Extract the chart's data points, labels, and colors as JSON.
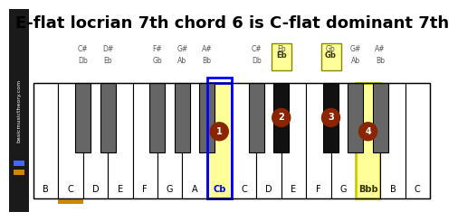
{
  "title": "E-flat locrian 7th chord 6 is C-flat dominant 7th",
  "title_fontsize": 13,
  "bg_color": "#ffffff",
  "sidebar_color": "#1a1a1a",
  "sidebar_text": "basicmusictheory.com",
  "white_keys": [
    "B",
    "C",
    "D",
    "E",
    "F",
    "G",
    "A",
    "Cb",
    "C",
    "D",
    "E",
    "F",
    "G",
    "Bbb",
    "B",
    "C"
  ],
  "black_key_after_white": [
    1,
    2,
    4,
    5,
    6,
    8,
    9,
    11,
    12,
    13
  ],
  "black_labels": [
    [
      "C#",
      "Db"
    ],
    [
      "D#",
      "Eb"
    ],
    [
      "F#",
      "Gb"
    ],
    [
      "G#",
      "Ab"
    ],
    [
      "A#",
      "Bb"
    ],
    [
      "C#",
      "Db"
    ],
    [
      "Eb",
      ""
    ],
    [
      "Gb",
      ""
    ],
    [
      "G#",
      "Ab"
    ],
    [
      "A#",
      "Bb"
    ]
  ],
  "highlighted_black": [
    6,
    7
  ],
  "highlighted_black_labels": [
    "Eb",
    "Gb"
  ],
  "chord_white": [
    7,
    13
  ],
  "chord_white_numbers": [
    1,
    4
  ],
  "chord_white_borders": [
    "blue",
    "#cccc00"
  ],
  "chord_black": [
    6,
    7
  ],
  "chord_black_numbers": [
    2,
    3
  ],
  "orange_underline_white": 1,
  "brown_color": "#8B2500",
  "yellow_bg": "#ffff99",
  "gray_black_key": "#666666"
}
